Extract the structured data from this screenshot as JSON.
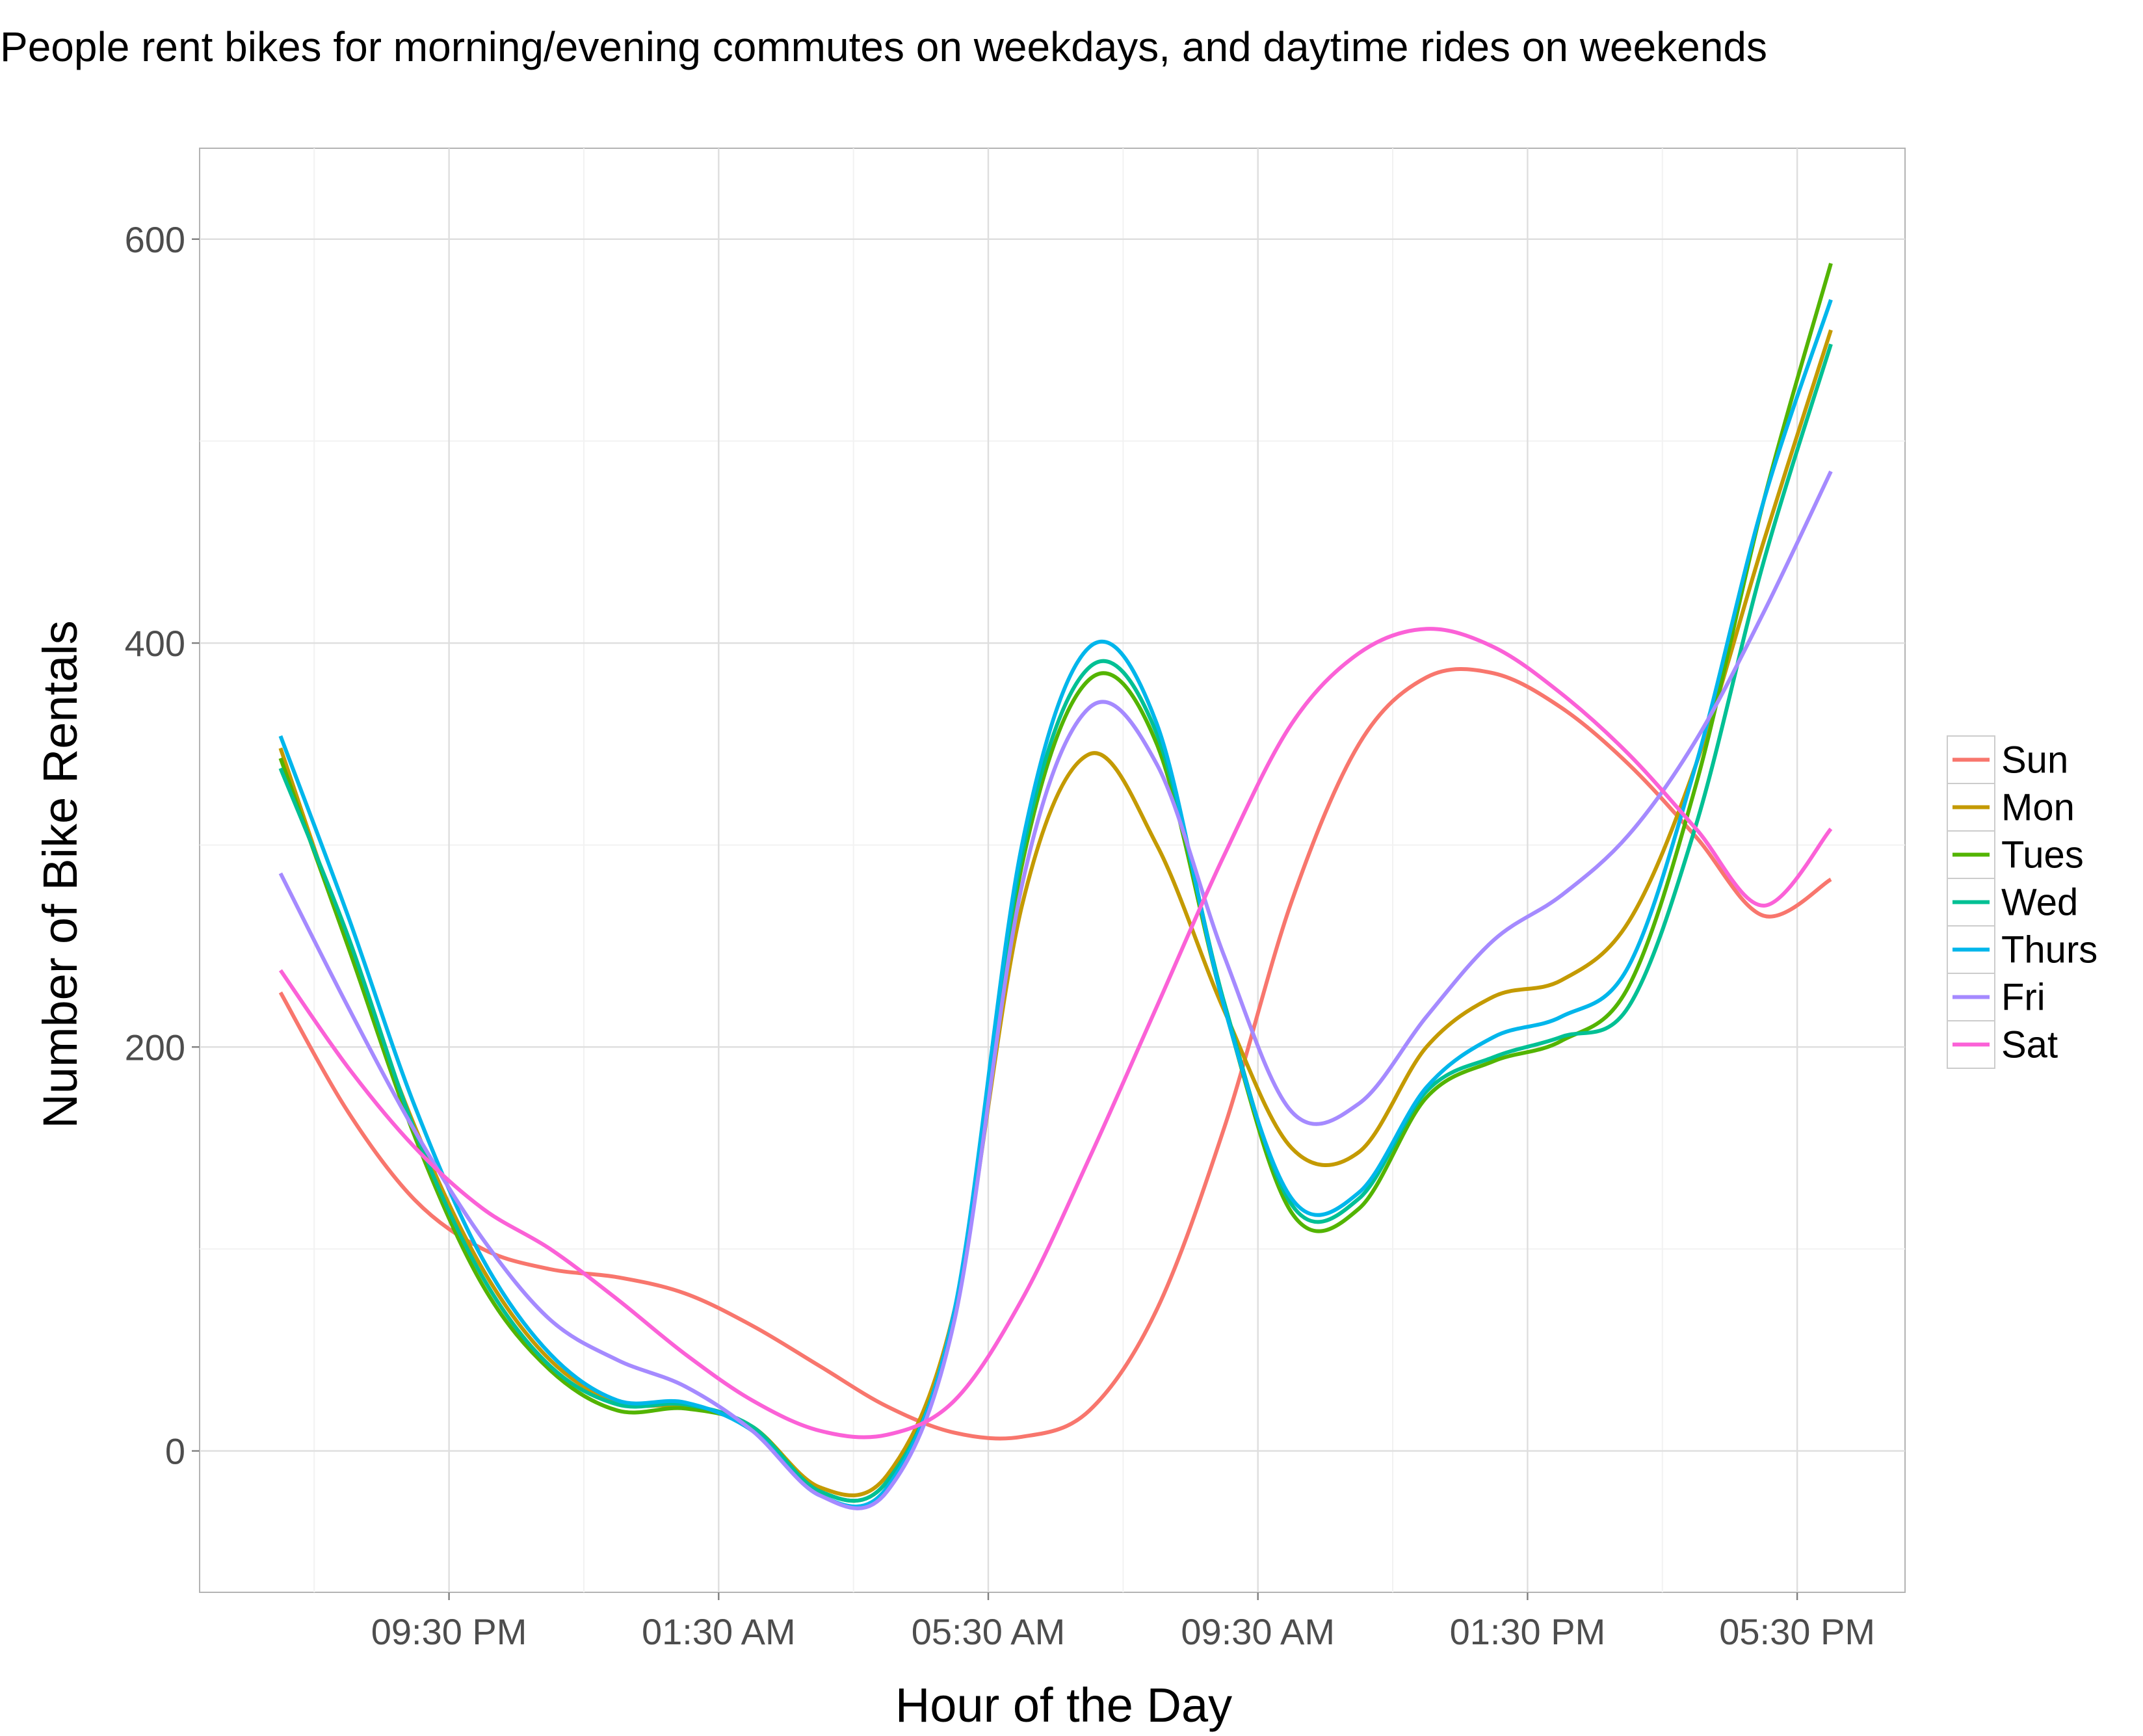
{
  "chart_data": {
    "type": "line",
    "title": "People rent bikes for morning/evening commutes on weekdays, and daytime rides on weekends",
    "xlabel": "Hour of the Day",
    "ylabel": "Number of Bike Rentals",
    "x_tick_labels": [
      "09:30 PM",
      "01:30 AM",
      "05:30 AM",
      "09:30 AM",
      "01:30 PM",
      "05:30 PM"
    ],
    "y_tick_labels": [
      "0",
      "200",
      "400",
      "600"
    ],
    "x_hours": [
      0,
      1,
      2,
      3,
      4,
      5,
      6,
      7,
      8,
      9,
      10,
      11,
      12,
      13,
      14,
      15,
      16,
      17,
      18,
      19,
      20,
      21,
      22,
      23
    ],
    "x_tick_hours": [
      2.5,
      6.5,
      10.5,
      14.5,
      18.5,
      22.5
    ],
    "xlim": [
      -1.2,
      24.1
    ],
    "y_ticks": [
      0,
      200,
      400,
      600
    ],
    "ylim": [
      -70,
      645
    ],
    "grid": true,
    "legend_position": "right",
    "series": [
      {
        "name": "Sun",
        "color": "#F8766D",
        "values": [
          227,
          168,
          124,
          100,
          90,
          86,
          78,
          62,
          42,
          22,
          9,
          7,
          20,
          70,
          160,
          272,
          350,
          383,
          385,
          368,
          340,
          304,
          265,
          283
        ]
      },
      {
        "name": "Mon",
        "color": "#C49A00",
        "values": [
          348,
          250,
          160,
          90,
          45,
          24,
          22,
          12,
          -18,
          -12,
          70,
          270,
          345,
          300,
          218,
          150,
          148,
          200,
          225,
          233,
          262,
          340,
          450,
          555
        ]
      },
      {
        "name": "Tues",
        "color": "#53B400",
        "values": [
          343,
          250,
          155,
          82,
          40,
          20,
          21,
          12,
          -20,
          -15,
          68,
          290,
          382,
          350,
          220,
          118,
          120,
          175,
          193,
          203,
          230,
          330,
          470,
          588
        ]
      },
      {
        "name": "Wed",
        "color": "#00C094",
        "values": [
          338,
          255,
          158,
          86,
          42,
          23,
          23,
          12,
          -20,
          -15,
          68,
          295,
          388,
          355,
          222,
          122,
          125,
          178,
          195,
          205,
          220,
          310,
          440,
          548
        ]
      },
      {
        "name": "Thurs",
        "color": "#00B6EB",
        "values": [
          354,
          265,
          170,
          95,
          48,
          25,
          24,
          10,
          -22,
          -18,
          70,
          300,
          398,
          360,
          220,
          125,
          128,
          180,
          205,
          215,
          240,
          340,
          470,
          570
        ]
      },
      {
        "name": "Fri",
        "color": "#A58AFF",
        "values": [
          286,
          220,
          158,
          105,
          65,
          45,
          32,
          10,
          -22,
          -20,
          65,
          280,
          368,
          340,
          245,
          168,
          172,
          215,
          253,
          275,
          305,
          352,
          415,
          485
        ]
      },
      {
        "name": "Sat",
        "color": "#FB61D7",
        "values": [
          238,
          190,
          150,
          120,
          100,
          75,
          48,
          25,
          10,
          8,
          25,
          75,
          145,
          220,
          295,
          360,
          395,
          407,
          398,
          375,
          345,
          308,
          270,
          308
        ]
      }
    ]
  }
}
